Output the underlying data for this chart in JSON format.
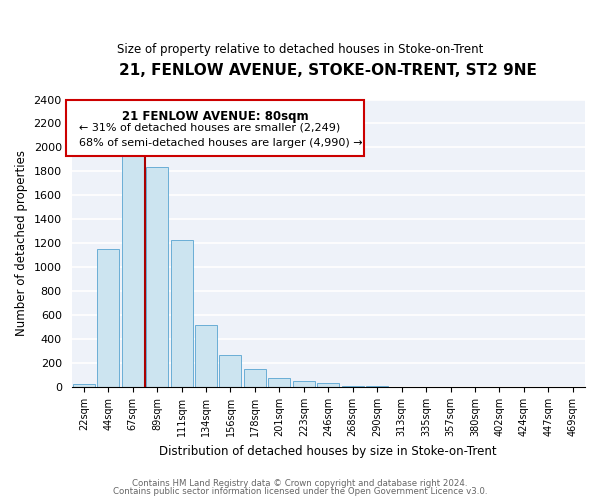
{
  "title": "21, FENLOW AVENUE, STOKE-ON-TRENT, ST2 9NE",
  "subtitle": "Size of property relative to detached houses in Stoke-on-Trent",
  "xlabel": "Distribution of detached houses by size in Stoke-on-Trent",
  "ylabel": "Number of detached properties",
  "bar_labels": [
    "22sqm",
    "44sqm",
    "67sqm",
    "89sqm",
    "111sqm",
    "134sqm",
    "156sqm",
    "178sqm",
    "201sqm",
    "223sqm",
    "246sqm",
    "268sqm",
    "290sqm",
    "313sqm",
    "335sqm",
    "357sqm",
    "380sqm",
    "402sqm",
    "424sqm",
    "447sqm",
    "469sqm"
  ],
  "bar_values": [
    25,
    1155,
    1960,
    1840,
    1225,
    520,
    265,
    148,
    78,
    50,
    35,
    10,
    5,
    3,
    2,
    1,
    1,
    0,
    0,
    0,
    0
  ],
  "bar_color": "#cce4f0",
  "bar_edge_color": "#6aaed6",
  "vline_color": "#aa0000",
  "annotation_title": "21 FENLOW AVENUE: 80sqm",
  "annotation_line1": "← 31% of detached houses are smaller (2,249)",
  "annotation_line2": "68% of semi-detached houses are larger (4,990) →",
  "annotation_box_color": "#cc0000",
  "ylim": [
    0,
    2400
  ],
  "yticks": [
    0,
    200,
    400,
    600,
    800,
    1000,
    1200,
    1400,
    1600,
    1800,
    2000,
    2200,
    2400
  ],
  "footer1": "Contains HM Land Registry data © Crown copyright and database right 2024.",
  "footer2": "Contains public sector information licensed under the Open Government Licence v3.0.",
  "background_color": "#eef2f9"
}
